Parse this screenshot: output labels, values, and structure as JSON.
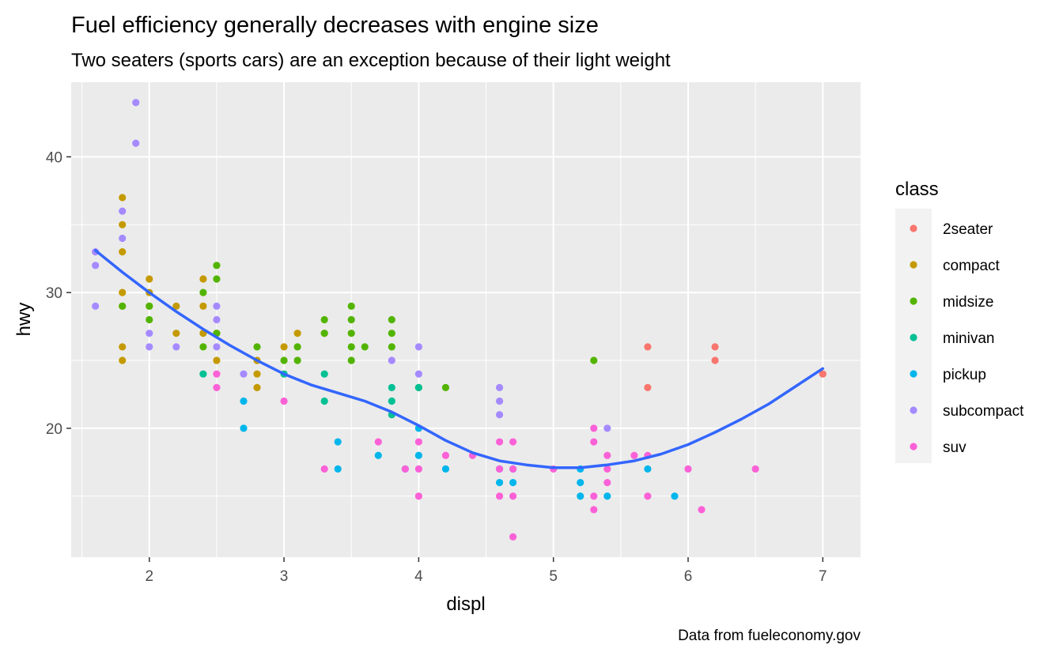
{
  "chart_data": {
    "type": "scatter",
    "title": "Fuel efficiency generally decreases with engine size",
    "subtitle": "Two seaters (sports cars) are an exception because of their light weight",
    "caption": "Data from fueleconomy.gov",
    "xlabel": "displ",
    "ylabel": "hwy",
    "xlim": [
      1.42,
      7.28
    ],
    "ylim": [
      10.5,
      45.5
    ],
    "x_ticks": [
      2,
      3,
      4,
      5,
      6,
      7
    ],
    "y_ticks": [
      20,
      30,
      40
    ],
    "grid": true,
    "legend": {
      "title": "class",
      "position": "right",
      "entries": [
        "2seater",
        "compact",
        "midsize",
        "minivan",
        "pickup",
        "subcompact",
        "suv"
      ]
    },
    "colors": {
      "2seater": "#F8766D",
      "compact": "#C49A00",
      "midsize": "#53B400",
      "minivan": "#00C094",
      "pickup": "#00B6EB",
      "subcompact": "#A58AFF",
      "suv": "#FB61D7",
      "smooth": "#3366FF"
    },
    "series": [
      {
        "name": "2seater",
        "points": [
          [
            5.7,
            26
          ],
          [
            5.7,
            23
          ],
          [
            6.2,
            26
          ],
          [
            6.2,
            25
          ],
          [
            7.0,
            24
          ]
        ]
      },
      {
        "name": "compact",
        "points": [
          [
            1.8,
            37
          ],
          [
            1.8,
            35
          ],
          [
            1.8,
            33
          ],
          [
            1.8,
            30
          ],
          [
            1.8,
            29
          ],
          [
            1.8,
            26
          ],
          [
            1.8,
            25
          ],
          [
            2.0,
            31
          ],
          [
            2.0,
            30
          ],
          [
            2.0,
            29
          ],
          [
            2.2,
            29
          ],
          [
            2.2,
            27
          ],
          [
            2.4,
            31
          ],
          [
            2.4,
            29
          ],
          [
            2.4,
            27
          ],
          [
            2.5,
            27
          ],
          [
            2.5,
            25
          ],
          [
            2.8,
            25
          ],
          [
            2.8,
            24
          ],
          [
            2.8,
            23
          ],
          [
            3.0,
            26
          ],
          [
            3.1,
            27
          ],
          [
            3.3,
            27
          ]
        ]
      },
      {
        "name": "midsize",
        "points": [
          [
            1.8,
            29
          ],
          [
            2.0,
            29
          ],
          [
            2.0,
            28
          ],
          [
            2.4,
            30
          ],
          [
            2.4,
            26
          ],
          [
            2.5,
            32
          ],
          [
            2.5,
            31
          ],
          [
            2.5,
            27
          ],
          [
            2.8,
            26
          ],
          [
            3.0,
            25
          ],
          [
            3.1,
            26
          ],
          [
            3.1,
            25
          ],
          [
            3.3,
            28
          ],
          [
            3.3,
            27
          ],
          [
            3.5,
            29
          ],
          [
            3.5,
            28
          ],
          [
            3.5,
            27
          ],
          [
            3.5,
            26
          ],
          [
            3.5,
            25
          ],
          [
            3.6,
            26
          ],
          [
            3.8,
            28
          ],
          [
            3.8,
            27
          ],
          [
            3.8,
            26
          ],
          [
            4.0,
            23
          ],
          [
            4.2,
            23
          ],
          [
            5.3,
            25
          ]
        ]
      },
      {
        "name": "minivan",
        "points": [
          [
            2.4,
            24
          ],
          [
            3.0,
            24
          ],
          [
            3.3,
            24
          ],
          [
            3.3,
            22
          ],
          [
            3.8,
            23
          ],
          [
            3.8,
            22
          ],
          [
            3.8,
            21
          ],
          [
            4.0,
            23
          ]
        ]
      },
      {
        "name": "pickup",
        "points": [
          [
            2.7,
            22
          ],
          [
            2.7,
            20
          ],
          [
            3.4,
            19
          ],
          [
            3.4,
            17
          ],
          [
            3.7,
            18
          ],
          [
            3.9,
            17
          ],
          [
            4.0,
            20
          ],
          [
            4.0,
            18
          ],
          [
            4.2,
            17
          ],
          [
            4.6,
            17
          ],
          [
            4.6,
            16
          ],
          [
            4.7,
            17
          ],
          [
            4.7,
            16
          ],
          [
            5.2,
            17
          ],
          [
            5.2,
            16
          ],
          [
            5.2,
            15
          ],
          [
            5.4,
            15
          ],
          [
            5.7,
            17
          ],
          [
            5.9,
            15
          ]
        ]
      },
      {
        "name": "subcompact",
        "points": [
          [
            1.6,
            33
          ],
          [
            1.6,
            32
          ],
          [
            1.6,
            29
          ],
          [
            1.8,
            36
          ],
          [
            1.8,
            34
          ],
          [
            1.9,
            44
          ],
          [
            1.9,
            41
          ],
          [
            2.0,
            27
          ],
          [
            2.0,
            26
          ],
          [
            2.2,
            26
          ],
          [
            2.5,
            29
          ],
          [
            2.5,
            28
          ],
          [
            2.5,
            26
          ],
          [
            2.7,
            24
          ],
          [
            3.8,
            25
          ],
          [
            4.0,
            26
          ],
          [
            4.0,
            24
          ],
          [
            4.6,
            23
          ],
          [
            4.6,
            22
          ],
          [
            4.6,
            21
          ],
          [
            5.4,
            20
          ]
        ]
      },
      {
        "name": "suv",
        "points": [
          [
            2.5,
            24
          ],
          [
            2.5,
            23
          ],
          [
            3.0,
            22
          ],
          [
            3.3,
            17
          ],
          [
            3.7,
            19
          ],
          [
            3.9,
            17
          ],
          [
            4.0,
            19
          ],
          [
            4.0,
            17
          ],
          [
            4.0,
            15
          ],
          [
            4.2,
            18
          ],
          [
            4.4,
            18
          ],
          [
            4.6,
            19
          ],
          [
            4.6,
            17
          ],
          [
            4.6,
            15
          ],
          [
            4.7,
            19
          ],
          [
            4.7,
            17
          ],
          [
            4.7,
            15
          ],
          [
            4.7,
            12
          ],
          [
            5.0,
            17
          ],
          [
            5.3,
            20
          ],
          [
            5.3,
            19
          ],
          [
            5.3,
            15
          ],
          [
            5.3,
            14
          ],
          [
            5.4,
            18
          ],
          [
            5.4,
            17
          ],
          [
            5.4,
            16
          ],
          [
            5.6,
            18
          ],
          [
            5.7,
            18
          ],
          [
            5.7,
            15
          ],
          [
            6.0,
            17
          ],
          [
            6.1,
            14
          ],
          [
            6.5,
            17
          ]
        ]
      }
    ],
    "smooth": {
      "method": "loess",
      "points": [
        [
          1.6,
          33.1
        ],
        [
          1.8,
          31.5
        ],
        [
          2.0,
          30.0
        ],
        [
          2.2,
          28.6
        ],
        [
          2.4,
          27.3
        ],
        [
          2.6,
          26.1
        ],
        [
          2.8,
          25.0
        ],
        [
          3.0,
          24.0
        ],
        [
          3.2,
          23.2
        ],
        [
          3.4,
          22.6
        ],
        [
          3.6,
          22.0
        ],
        [
          3.8,
          21.2
        ],
        [
          4.0,
          20.2
        ],
        [
          4.2,
          19.1
        ],
        [
          4.4,
          18.2
        ],
        [
          4.6,
          17.6
        ],
        [
          4.8,
          17.3
        ],
        [
          5.0,
          17.1
        ],
        [
          5.2,
          17.1
        ],
        [
          5.4,
          17.3
        ],
        [
          5.6,
          17.6
        ],
        [
          5.8,
          18.1
        ],
        [
          6.0,
          18.8
        ],
        [
          6.2,
          19.7
        ],
        [
          6.4,
          20.7
        ],
        [
          6.6,
          21.8
        ],
        [
          6.8,
          23.1
        ],
        [
          7.0,
          24.4
        ]
      ]
    }
  }
}
